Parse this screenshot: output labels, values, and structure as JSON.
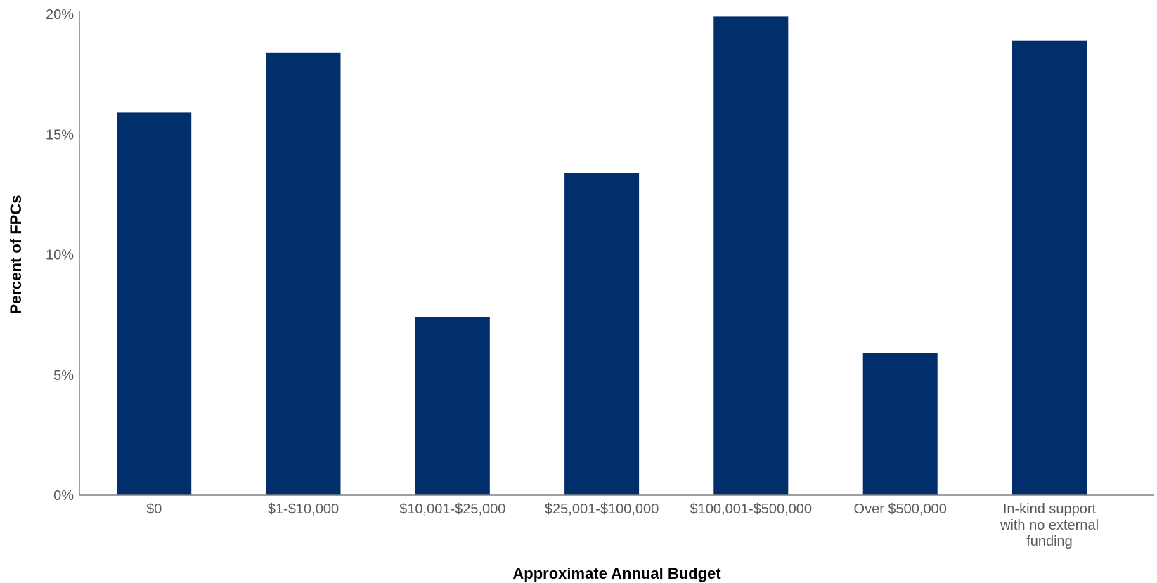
{
  "chart_data": {
    "type": "bar",
    "categories": [
      "$0",
      "$1-$10,000",
      "$10,001-$25,000",
      "$25,001-$100,000",
      "$100,001-$500,000",
      "Over $500,000",
      "In-kind support with no external funding"
    ],
    "category_lines": [
      [
        "$0"
      ],
      [
        "$1-$10,000"
      ],
      [
        "$10,001-$25,000"
      ],
      [
        "$25,001-$100,000"
      ],
      [
        "$100,001-$500,000"
      ],
      [
        "Over $500,000"
      ],
      [
        "In-kind support",
        "with no external",
        "funding"
      ]
    ],
    "values": [
      15.9,
      18.4,
      7.4,
      13.4,
      19.9,
      5.9,
      18.9
    ],
    "unit": "%",
    "xlabel": "Approximate Annual Budget",
    "ylabel": "Percent of FPCs",
    "ylim": [
      0,
      20
    ],
    "yticks": [
      0,
      5,
      10,
      15,
      20
    ],
    "ytick_labels": [
      "0%",
      "5%",
      "10%",
      "15%",
      "20%"
    ],
    "grid": false,
    "legend": "none",
    "colors": {
      "bar": "#002F6C",
      "axis": "#808080",
      "tick_text": "#595959",
      "title_text": "#000000"
    }
  }
}
